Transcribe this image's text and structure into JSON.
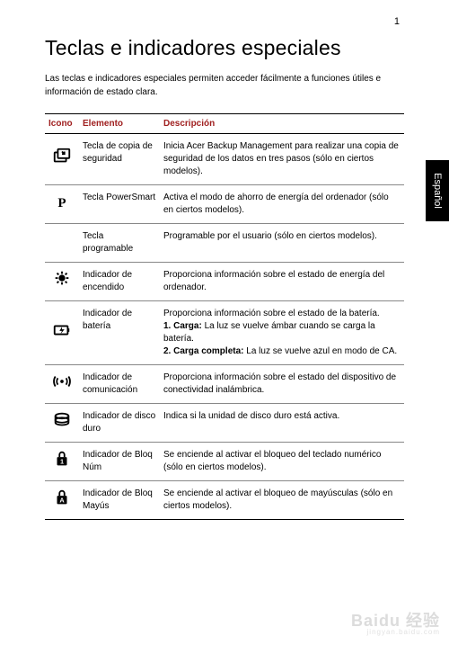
{
  "page_number": "1",
  "title": "Teclas e indicadores especiales",
  "intro": "Las teclas e indicadores especiales permiten acceder fácilmente a funciones útiles e información de estado clara.",
  "side_tab": "Español",
  "headers": {
    "icon": "Icono",
    "element": "Elemento",
    "desc": "Descripción"
  },
  "header_color": "#a02020",
  "rows": [
    {
      "icon": "backup",
      "element": "Tecla de copia de seguridad",
      "desc": "Inicia Acer Backup Management para realizar una copia de seguridad de los datos en tres pasos (sólo en ciertos modelos)."
    },
    {
      "icon": "p",
      "element": "Tecla PowerSmart",
      "desc": "Activa el modo de ahorro de energía del ordenador (sólo en ciertos modelos)."
    },
    {
      "icon": "",
      "element": "Tecla programable",
      "desc": "Programable por el usuario (sólo en ciertos modelos)."
    },
    {
      "icon": "power",
      "element": "Indicador de encendido",
      "desc": "Proporciona información sobre el estado de energía del ordenador."
    },
    {
      "icon": "battery",
      "element": "Indicador de batería",
      "desc": "Proporciona información sobre el estado de la batería.",
      "lines": [
        {
          "bold": "1. Carga:",
          "rest": " La luz se vuelve ámbar cuando se carga la batería."
        },
        {
          "bold": "2. Carga completa:",
          "rest": " La luz se vuelve azul en modo de CA."
        }
      ]
    },
    {
      "icon": "wifi",
      "element": "Indicador de comunicación",
      "desc": "Proporciona información sobre el estado del dispositivo de conectividad inalámbrica."
    },
    {
      "icon": "hdd",
      "element": "Indicador de disco duro",
      "desc": "Indica si la unidad de disco duro está activa."
    },
    {
      "icon": "numlock",
      "element": "Indicador de Bloq Núm",
      "desc": "Se enciende al activar el bloqueo del teclado numérico (sólo en ciertos modelos)."
    },
    {
      "icon": "capslock",
      "element": "Indicador de Bloq Mayús",
      "desc": "Se enciende al activar el bloqueo de mayúsculas (sólo en ciertos modelos)."
    }
  ],
  "watermark": {
    "main": "Baidu 经验",
    "sub": "jingyan.baidu.com"
  }
}
